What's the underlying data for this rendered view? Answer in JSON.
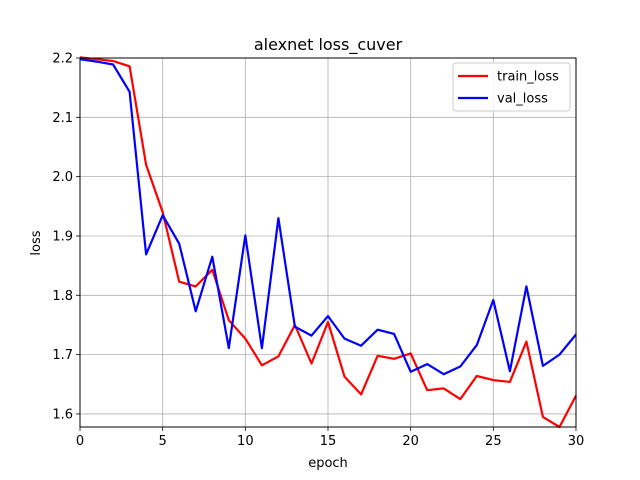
{
  "chart_data": {
    "type": "line",
    "title": "alexnet loss_cuver",
    "xlabel": "epoch",
    "ylabel": "loss",
    "xlim": [
      0,
      30
    ],
    "ylim": [
      1.578,
      2.2
    ],
    "xticks": [
      0,
      5,
      10,
      15,
      20,
      25,
      30
    ],
    "yticks": [
      1.6,
      1.7,
      1.8,
      1.9,
      2.0,
      2.1,
      2.2
    ],
    "ytick_labels": [
      "1.6",
      "1.7",
      "1.8",
      "1.9",
      "2.0",
      "2.1",
      "2.2"
    ],
    "grid": true,
    "legend_position": "top-right",
    "x": [
      0,
      1,
      2,
      3,
      4,
      5,
      6,
      7,
      8,
      9,
      10,
      11,
      12,
      13,
      14,
      15,
      16,
      17,
      18,
      19,
      20,
      21,
      22,
      23,
      24,
      25,
      26,
      27,
      28,
      29,
      30
    ],
    "series": [
      {
        "name": "train_loss",
        "color": "#ff0000",
        "values": [
          2.201,
          2.198,
          2.195,
          2.186,
          2.02,
          1.94,
          1.823,
          1.815,
          1.843,
          1.758,
          1.727,
          1.682,
          1.697,
          1.75,
          1.685,
          1.755,
          1.663,
          1.633,
          1.698,
          1.693,
          1.702,
          1.64,
          1.643,
          1.625,
          1.664,
          1.657,
          1.654,
          1.722,
          1.595,
          1.578,
          1.631
        ]
      },
      {
        "name": "val_loss",
        "color": "#0000ff",
        "values": [
          2.198,
          2.194,
          2.189,
          2.143,
          1.869,
          1.935,
          1.887,
          1.773,
          1.865,
          1.711,
          1.901,
          1.711,
          1.93,
          1.747,
          1.732,
          1.765,
          1.727,
          1.715,
          1.742,
          1.735,
          1.671,
          1.684,
          1.667,
          1.68,
          1.716,
          1.792,
          1.672,
          1.815,
          1.681,
          1.7,
          1.734
        ]
      }
    ]
  }
}
